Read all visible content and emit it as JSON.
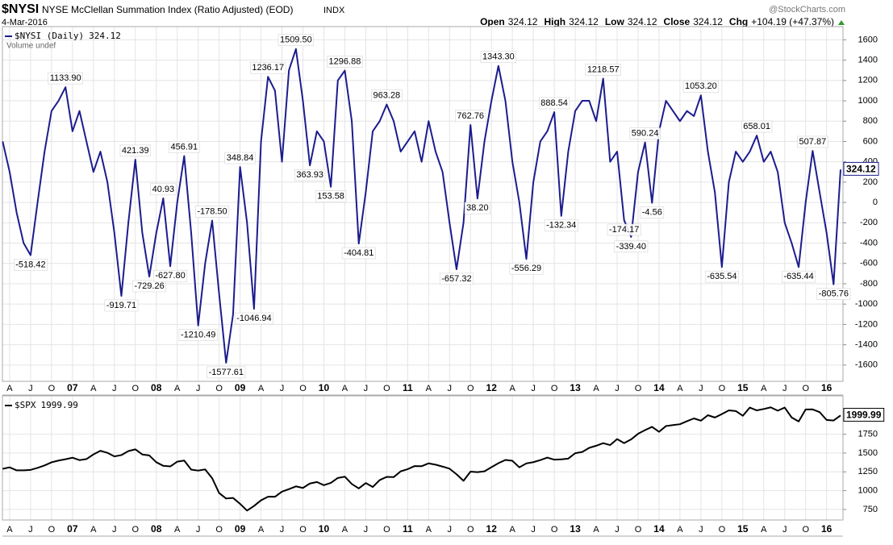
{
  "header": {
    "symbol": "$NYSI",
    "name": "NYSE McClellan Summation Index (Ratio Adjusted) (EOD)",
    "exchange": "INDX",
    "date": "4-Mar-2016",
    "source": "@StockCharts.com",
    "stats": [
      {
        "label": "Open",
        "value": "324.12"
      },
      {
        "label": "High",
        "value": "324.12"
      },
      {
        "label": "Low",
        "value": "324.12"
      },
      {
        "label": "Close",
        "value": "324.12"
      },
      {
        "label": "Chg",
        "value": "+104.19 (+47.37%)"
      }
    ]
  },
  "chart_data": [
    {
      "type": "line",
      "categories": [
        null,
        "A",
        null,
        null,
        "J",
        null,
        null,
        "O",
        null,
        null,
        "07",
        null,
        null,
        "A",
        null,
        null,
        "J",
        null,
        null,
        "O",
        null,
        null,
        "08",
        null,
        null,
        "A",
        null,
        null,
        "J",
        null,
        null,
        "O",
        null,
        null,
        "09",
        null,
        null,
        "A",
        null,
        null,
        "J",
        null,
        null,
        "O",
        null,
        null,
        "10",
        null,
        null,
        "A",
        null,
        null,
        "J",
        null,
        null,
        "O",
        null,
        null,
        "11",
        null,
        null,
        "A",
        null,
        null,
        "J",
        null,
        null,
        "O",
        null,
        null,
        "12",
        null,
        null,
        "A",
        null,
        null,
        "J",
        null,
        null,
        "O",
        null,
        null,
        "13",
        null,
        null,
        "A",
        null,
        null,
        "J",
        null,
        null,
        "O",
        null,
        null,
        "14",
        null,
        null,
        "A",
        null,
        null,
        "J",
        null,
        null,
        "O",
        null,
        null,
        "15",
        null,
        null,
        "A",
        null,
        null,
        "J",
        null,
        null,
        "O",
        null,
        null,
        "16",
        null,
        null
      ],
      "series": [
        {
          "name": "$NYSI (Daily)",
          "color": "#1c1c8e",
          "values": [
            600,
            300,
            -100,
            -400,
            -518.42,
            0,
            500,
            900,
            1000,
            1133.9,
            700,
            900,
            600,
            300,
            500,
            200,
            -300,
            -919.71,
            -200,
            421.39,
            -300,
            -729.26,
            -300,
            40.93,
            -627.8,
            0,
            456.91,
            -300,
            -1210.49,
            -600,
            -178.5,
            -900,
            -1577.61,
            -1100,
            348.84,
            -200,
            -1046.94,
            600,
            1236.17,
            1100,
            400,
            1300,
            1509.5,
            1000,
            363.93,
            700,
            600,
            153.58,
            1200,
            1296.88,
            800,
            -404.81,
            100,
            700,
            800,
            963.28,
            800,
            500,
            600,
            700,
            400,
            800,
            500,
            300,
            -200,
            -657.32,
            -200,
            762.76,
            38.2,
            600,
            1000,
            1343.3,
            1000,
            400,
            0,
            -556.29,
            200,
            600,
            700,
            888.54,
            -132.34,
            500,
            900,
            1000,
            1000,
            800,
            1218.57,
            400,
            500,
            -174.17,
            -339.4,
            300,
            590.24,
            -4.56,
            700,
            1000,
            900,
            800,
            900,
            850,
            1053.2,
            500,
            100,
            -635.54,
            200,
            500,
            400,
            500,
            658.01,
            400,
            500,
            300,
            -200,
            -400,
            -635.44,
            0,
            507.87,
            100,
            -300,
            -805.76,
            324.12
          ],
          "value_labels": [
            null,
            null,
            null,
            null,
            "-518.42",
            null,
            null,
            null,
            null,
            "1133.90",
            null,
            null,
            null,
            null,
            null,
            null,
            null,
            "-919.71",
            null,
            "421.39",
            null,
            "-729.26",
            null,
            "40.93",
            "-627.80",
            null,
            "456.91",
            null,
            "-1210.49",
            null,
            "-178.50",
            null,
            "-1577.61",
            null,
            "348.84",
            null,
            "-1046.94",
            null,
            "1236.17",
            null,
            null,
            null,
            "1509.50",
            null,
            "363.93",
            null,
            null,
            "153.58",
            null,
            "1296.88",
            null,
            "-404.81",
            null,
            null,
            null,
            "963.28",
            null,
            null,
            null,
            null,
            null,
            null,
            null,
            null,
            null,
            "-657.32",
            null,
            "762.76",
            "38.20",
            null,
            null,
            "1343.30",
            null,
            null,
            null,
            "-556.29",
            null,
            null,
            null,
            "888.54",
            "-132.34",
            null,
            null,
            null,
            null,
            null,
            "1218.57",
            null,
            null,
            "-174.17",
            "-339.40",
            null,
            "590.24",
            "-4.56",
            null,
            null,
            null,
            null,
            null,
            null,
            "1053.20",
            null,
            null,
            "-635.54",
            null,
            null,
            null,
            null,
            "658.01",
            null,
            null,
            null,
            null,
            null,
            "-635.44",
            null,
            "507.87",
            null,
            null,
            "-805.76",
            null
          ]
        }
      ],
      "legend_note": "Volume undef",
      "ylim": [
        -1760,
        1730
      ],
      "yticks": [
        -1600,
        -1400,
        -1200,
        -1000,
        -800,
        -600,
        -400,
        -200,
        0,
        200,
        400,
        600,
        800,
        1000,
        1200,
        1400,
        1600
      ],
      "grid": true
    },
    {
      "type": "line",
      "categories": [
        null,
        "A",
        null,
        null,
        "J",
        null,
        null,
        "O",
        null,
        null,
        "07",
        null,
        null,
        "A",
        null,
        null,
        "J",
        null,
        null,
        "O",
        null,
        null,
        "08",
        null,
        null,
        "A",
        null,
        null,
        "J",
        null,
        null,
        "O",
        null,
        null,
        "09",
        null,
        null,
        "A",
        null,
        null,
        "J",
        null,
        null,
        "O",
        null,
        null,
        "10",
        null,
        null,
        "A",
        null,
        null,
        "J",
        null,
        null,
        "O",
        null,
        null,
        "11",
        null,
        null,
        "A",
        null,
        null,
        "J",
        null,
        null,
        "O",
        null,
        null,
        "12",
        null,
        null,
        "A",
        null,
        null,
        "J",
        null,
        null,
        "O",
        null,
        null,
        "13",
        null,
        null,
        "A",
        null,
        null,
        "J",
        null,
        null,
        "O",
        null,
        null,
        "14",
        null,
        null,
        "A",
        null,
        null,
        "J",
        null,
        null,
        "O",
        null,
        null,
        "15",
        null,
        null,
        "A",
        null,
        null,
        "J",
        null,
        null,
        "O",
        null,
        null,
        "16",
        null,
        null
      ],
      "series": [
        {
          "name": "$SPX",
          "color": "#000000",
          "values": [
            1290,
            1310,
            1270,
            1270,
            1276,
            1303,
            1335,
            1377,
            1400,
            1418,
            1438,
            1406,
            1420,
            1482,
            1530,
            1503,
            1455,
            1473,
            1526,
            1549,
            1481,
            1468,
            1378,
            1330,
            1322,
            1385,
            1400,
            1280,
            1267,
            1282,
            1166,
            968,
            896,
            903,
            825,
            735,
            797,
            872,
            919,
            919,
            987,
            1020,
            1057,
            1036,
            1095,
            1115,
            1073,
            1104,
            1169,
            1186,
            1089,
            1030,
            1101,
            1049,
            1141,
            1183,
            1180,
            1257,
            1286,
            1327,
            1325,
            1363,
            1345,
            1320,
            1292,
            1218,
            1131,
            1253,
            1246,
            1257,
            1312,
            1365,
            1408,
            1397,
            1310,
            1362,
            1379,
            1406,
            1440,
            1412,
            1416,
            1426,
            1498,
            1514,
            1569,
            1597,
            1631,
            1606,
            1685,
            1632,
            1681,
            1756,
            1805,
            1848,
            1782,
            1859,
            1872,
            1883,
            1923,
            1960,
            1930,
            2003,
            1972,
            2018,
            2067,
            2058,
            1995,
            2104,
            2067,
            2085,
            2107,
            2063,
            2104,
            1972,
            1920,
            2079,
            2080,
            2044,
            1940,
            1932,
            1999.99
          ]
        }
      ],
      "ylim": [
        610,
        2260
      ],
      "yticks": [
        750,
        1000,
        1250,
        1500,
        1750
      ],
      "grid": true
    }
  ]
}
